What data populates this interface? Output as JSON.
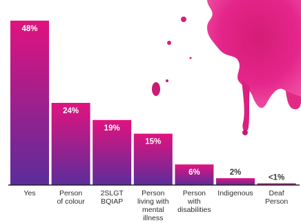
{
  "chart_data": {
    "type": "bar",
    "categories": [
      [
        "Yes"
      ],
      [
        "Person",
        "of colour"
      ],
      [
        "2SLGT",
        "BQIAP"
      ],
      [
        "Person",
        "living with",
        "mental",
        "illness"
      ],
      [
        "Person",
        "with",
        "disabilities"
      ],
      [
        "Indigenous"
      ],
      [
        "Deaf",
        "Person"
      ]
    ],
    "values": [
      48,
      24,
      19,
      15,
      6,
      2,
      0.5
    ],
    "value_labels": [
      "48%",
      "24%",
      "19%",
      "15%",
      "6%",
      "2%",
      "<1%"
    ],
    "ylim": [
      0,
      50
    ],
    "grid": false,
    "colors": {
      "bar_top": "#e0137f",
      "bar_bottom": "#5b2d9a",
      "label_inside": "#ffffff",
      "label_outside": "#3a3a3a",
      "axis": "#222222",
      "splash": "#e31a84"
    }
  }
}
